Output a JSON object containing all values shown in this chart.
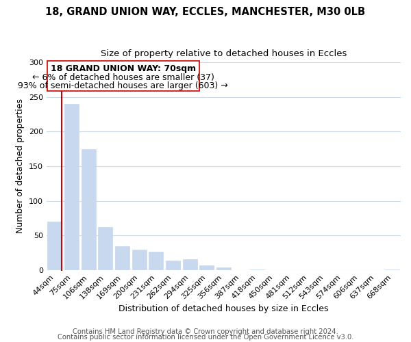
{
  "title": "18, GRAND UNION WAY, ECCLES, MANCHESTER, M30 0LB",
  "subtitle": "Size of property relative to detached houses in Eccles",
  "xlabel": "Distribution of detached houses by size in Eccles",
  "ylabel": "Number of detached properties",
  "bar_labels": [
    "44sqm",
    "75sqm",
    "106sqm",
    "138sqm",
    "169sqm",
    "200sqm",
    "231sqm",
    "262sqm",
    "294sqm",
    "325sqm",
    "356sqm",
    "387sqm",
    "418sqm",
    "450sqm",
    "481sqm",
    "512sqm",
    "543sqm",
    "574sqm",
    "606sqm",
    "637sqm",
    "668sqm"
  ],
  "bar_values": [
    70,
    240,
    175,
    62,
    35,
    30,
    27,
    14,
    16,
    7,
    4,
    0,
    1,
    0,
    0,
    0,
    0,
    0,
    0,
    0,
    1
  ],
  "bar_color": "#c8d8ee",
  "property_line_color": "#cc0000",
  "ann_line1": "18 GRAND UNION WAY: 70sqm",
  "ann_line2": "← 6% of detached houses are smaller (37)",
  "ann_line3": "93% of semi-detached houses are larger (603) →",
  "ylim": [
    0,
    300
  ],
  "yticks": [
    0,
    50,
    100,
    150,
    200,
    250,
    300
  ],
  "footer_line1": "Contains HM Land Registry data © Crown copyright and database right 2024.",
  "footer_line2": "Contains public sector information licensed under the Open Government Licence v3.0.",
  "bg_color": "#ffffff",
  "grid_color": "#cdd8e8",
  "title_fontsize": 10.5,
  "subtitle_fontsize": 9.5,
  "axis_label_fontsize": 9,
  "tick_fontsize": 8,
  "ann_fontsize": 9,
  "footer_fontsize": 7.2
}
